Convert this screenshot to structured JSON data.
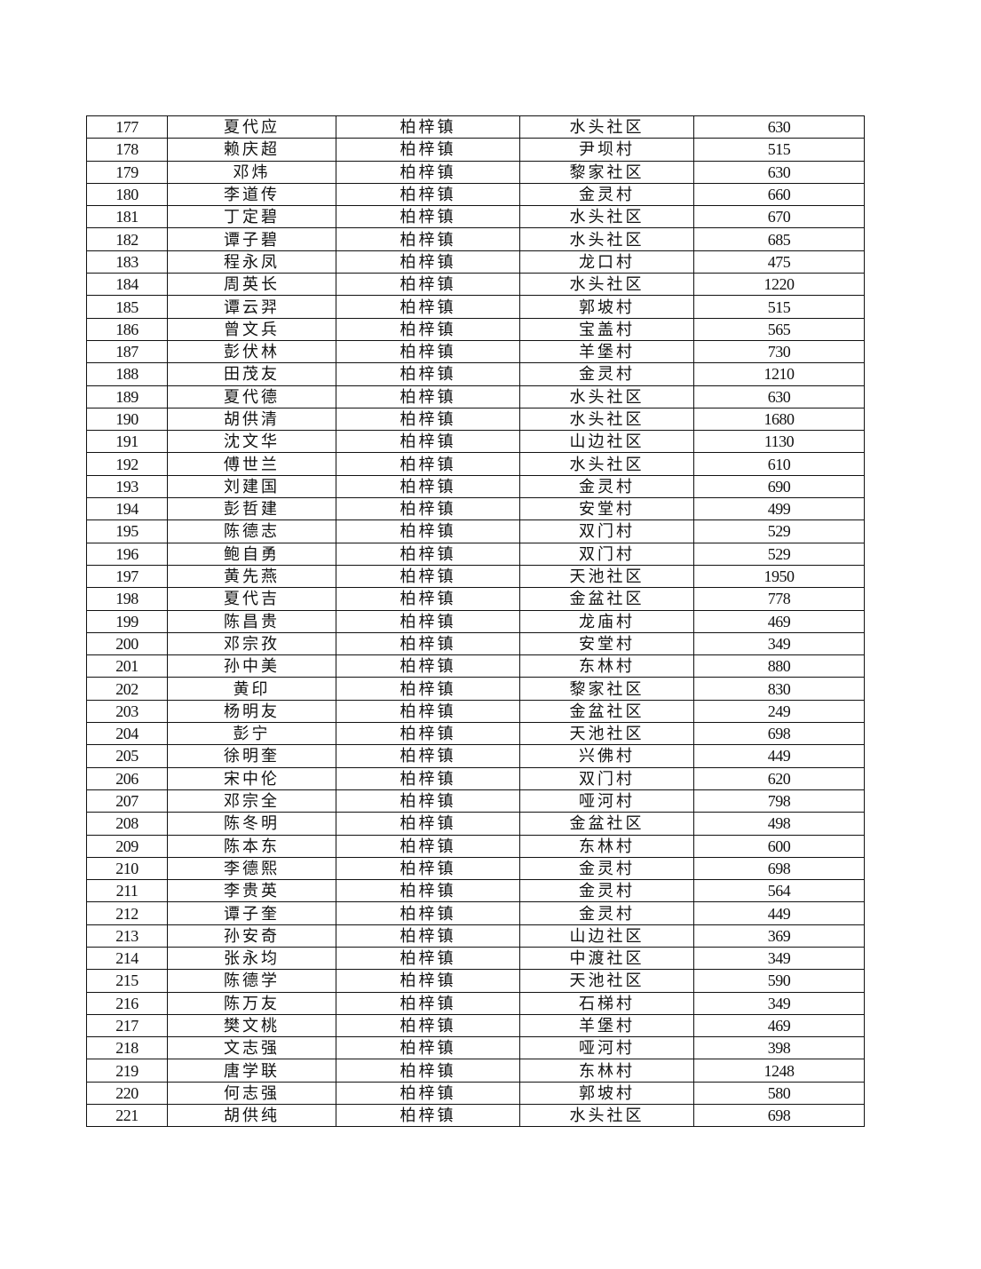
{
  "table": {
    "rows": [
      [
        "177",
        "夏代应",
        "柏梓镇",
        "水头社区",
        "630"
      ],
      [
        "178",
        "赖庆超",
        "柏梓镇",
        "尹坝村",
        "515"
      ],
      [
        "179",
        "邓炜",
        "柏梓镇",
        "黎家社区",
        "630"
      ],
      [
        "180",
        "李道传",
        "柏梓镇",
        "金灵村",
        "660"
      ],
      [
        "181",
        "丁定碧",
        "柏梓镇",
        "水头社区",
        "670"
      ],
      [
        "182",
        "谭子碧",
        "柏梓镇",
        "水头社区",
        "685"
      ],
      [
        "183",
        "程永凤",
        "柏梓镇",
        "龙口村",
        "475"
      ],
      [
        "184",
        "周英长",
        "柏梓镇",
        "水头社区",
        "1220"
      ],
      [
        "185",
        "谭云羿",
        "柏梓镇",
        "郭坡村",
        "515"
      ],
      [
        "186",
        "曾文兵",
        "柏梓镇",
        "宝盖村",
        "565"
      ],
      [
        "187",
        "彭伏林",
        "柏梓镇",
        "羊堡村",
        "730"
      ],
      [
        "188",
        "田茂友",
        "柏梓镇",
        "金灵村",
        "1210"
      ],
      [
        "189",
        "夏代德",
        "柏梓镇",
        "水头社区",
        "630"
      ],
      [
        "190",
        "胡供清",
        "柏梓镇",
        "水头社区",
        "1680"
      ],
      [
        "191",
        "沈文华",
        "柏梓镇",
        "山边社区",
        "1130"
      ],
      [
        "192",
        "傅世兰",
        "柏梓镇",
        "水头社区",
        "610"
      ],
      [
        "193",
        "刘建国",
        "柏梓镇",
        "金灵村",
        "690"
      ],
      [
        "194",
        "彭哲建",
        "柏梓镇",
        "安堂村",
        "499"
      ],
      [
        "195",
        "陈德志",
        "柏梓镇",
        "双门村",
        "529"
      ],
      [
        "196",
        "鲍自勇",
        "柏梓镇",
        "双门村",
        "529"
      ],
      [
        "197",
        "黄先燕",
        "柏梓镇",
        "天池社区",
        "1950"
      ],
      [
        "198",
        "夏代吉",
        "柏梓镇",
        "金盆社区",
        "778"
      ],
      [
        "199",
        "陈昌贵",
        "柏梓镇",
        "龙庙村",
        "469"
      ],
      [
        "200",
        "邓宗孜",
        "柏梓镇",
        "安堂村",
        "349"
      ],
      [
        "201",
        "孙中美",
        "柏梓镇",
        "东林村",
        "880"
      ],
      [
        "202",
        "黄印",
        "柏梓镇",
        "黎家社区",
        "830"
      ],
      [
        "203",
        "杨明友",
        "柏梓镇",
        "金盆社区",
        "249"
      ],
      [
        "204",
        "彭宁",
        "柏梓镇",
        "天池社区",
        "698"
      ],
      [
        "205",
        "徐明奎",
        "柏梓镇",
        "兴佛村",
        "449"
      ],
      [
        "206",
        "宋中伦",
        "柏梓镇",
        "双门村",
        "620"
      ],
      [
        "207",
        "邓宗全",
        "柏梓镇",
        "哑河村",
        "798"
      ],
      [
        "208",
        "陈冬明",
        "柏梓镇",
        "金盆社区",
        "498"
      ],
      [
        "209",
        "陈本东",
        "柏梓镇",
        "东林村",
        "600"
      ],
      [
        "210",
        "李德熙",
        "柏梓镇",
        "金灵村",
        "698"
      ],
      [
        "211",
        "李贵英",
        "柏梓镇",
        "金灵村",
        "564"
      ],
      [
        "212",
        "谭子奎",
        "柏梓镇",
        "金灵村",
        "449"
      ],
      [
        "213",
        "孙安奇",
        "柏梓镇",
        "山边社区",
        "369"
      ],
      [
        "214",
        "张永均",
        "柏梓镇",
        "中渡社区",
        "349"
      ],
      [
        "215",
        "陈德学",
        "柏梓镇",
        "天池社区",
        "590"
      ],
      [
        "216",
        "陈万友",
        "柏梓镇",
        "石梯村",
        "349"
      ],
      [
        "217",
        "樊文桃",
        "柏梓镇",
        "羊堡村",
        "469"
      ],
      [
        "218",
        "文志强",
        "柏梓镇",
        "哑河村",
        "398"
      ],
      [
        "219",
        "唐学联",
        "柏梓镇",
        "东林村",
        "1248"
      ],
      [
        "220",
        "何志强",
        "柏梓镇",
        "郭坡村",
        "580"
      ],
      [
        "221",
        "胡供纯",
        "柏梓镇",
        "水头社区",
        "698"
      ]
    ]
  }
}
